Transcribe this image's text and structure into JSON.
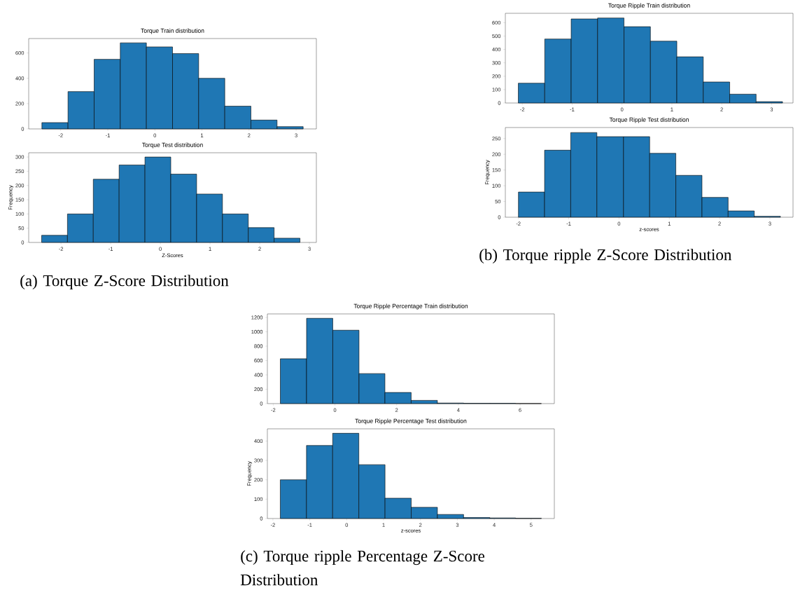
{
  "chart_data": [
    {
      "type": "histogram",
      "title": "Torque Train distribution",
      "color": "#1f77b4",
      "bins": [
        -2.4,
        -1.845,
        -1.29,
        -0.735,
        -0.18,
        0.375,
        0.93,
        1.485,
        2.04,
        2.595,
        3.15
      ],
      "values": [
        50,
        295,
        550,
        680,
        648,
        595,
        400,
        180,
        70,
        18
      ],
      "xlim": [
        -2.68,
        3.43
      ],
      "ylim": [
        0,
        714
      ],
      "xticks": [
        -2,
        -1,
        0,
        1,
        2,
        3
      ],
      "yticks": [
        0,
        200,
        400,
        600
      ]
    },
    {
      "type": "histogram",
      "title": "Torque Test distribution",
      "xlabel": "Z-Scores",
      "ylabel": "Frequency",
      "color": "#1f77b4",
      "bins": [
        -2.39,
        -1.87,
        -1.35,
        -0.83,
        -0.31,
        0.21,
        0.73,
        1.25,
        1.77,
        2.29,
        2.81
      ],
      "values": [
        25,
        100,
        222,
        272,
        300,
        240,
        170,
        100,
        52,
        15
      ],
      "xlim": [
        -2.65,
        3.14
      ],
      "ylim": [
        0,
        315
      ],
      "xticks": [
        -2,
        -1,
        0,
        1,
        2,
        3
      ],
      "yticks": [
        0,
        50,
        100,
        150,
        200,
        250,
        300
      ],
      "annotations": [
        "(a) Torque Z-Score Distribution"
      ]
    },
    {
      "type": "histogram",
      "title": "Torque Ripple Train distribution",
      "color": "#1f77b4",
      "bins": [
        -2.08,
        -1.55,
        -1.02,
        -0.49,
        0.04,
        0.57,
        1.1,
        1.63,
        2.16,
        2.69,
        3.22
      ],
      "values": [
        148,
        478,
        628,
        635,
        570,
        462,
        345,
        157,
        66,
        10
      ],
      "xlim": [
        -2.34,
        3.43
      ],
      "ylim": [
        0,
        670
      ],
      "xticks": [
        -2,
        -1,
        0,
        1,
        2,
        3
      ],
      "yticks": [
        0,
        100,
        200,
        300,
        400,
        500,
        600
      ]
    },
    {
      "type": "histogram",
      "title": "Torque Ripple Test distribution",
      "xlabel": "z-scores",
      "ylabel": "Frequency",
      "color": "#1f77b4",
      "bins": [
        -2.0,
        -1.48,
        -0.96,
        -0.44,
        0.09,
        0.61,
        1.13,
        1.65,
        2.17,
        2.69,
        3.21
      ],
      "values": [
        80,
        213,
        269,
        256,
        256,
        203,
        133,
        63,
        20,
        3
      ],
      "xlim": [
        -2.26,
        3.46
      ],
      "ylim": [
        0,
        285
      ],
      "xticks": [
        -2,
        -1,
        0,
        1,
        2,
        3
      ],
      "yticks": [
        0,
        50,
        100,
        150,
        200,
        250
      ],
      "annotations": [
        "(b) Torque ripple Z-Score Distribution"
      ]
    },
    {
      "type": "histogram",
      "title": "Torque Ripple Percentage Train distribution",
      "color": "#1f77b4",
      "bins": [
        -1.77,
        -0.92,
        -0.07,
        0.78,
        1.62,
        2.47,
        3.32,
        4.17,
        5.02,
        5.85,
        6.69
      ],
      "values": [
        625,
        1188,
        1022,
        418,
        155,
        45,
        8,
        4,
        4,
        1
      ],
      "xlim": [
        -2.19,
        7.11
      ],
      "ylim": [
        0,
        1249
      ],
      "xticks": [
        -2,
        0,
        2,
        4,
        6
      ],
      "yticks": [
        0,
        200,
        400,
        600,
        800,
        1000,
        1200
      ]
    },
    {
      "type": "histogram",
      "title": "Torque Ripple Percentage Test distribution",
      "xlabel": "z-scores",
      "ylabel": "Frequency",
      "color": "#1f77b4",
      "bins": [
        -1.8,
        -1.09,
        -0.38,
        0.33,
        1.04,
        1.75,
        2.46,
        3.17,
        3.88,
        4.58,
        5.28
      ],
      "values": [
        200,
        377,
        440,
        278,
        105,
        58,
        21,
        5,
        3,
        1
      ],
      "xlim": [
        -2.15,
        5.63
      ],
      "ylim": [
        0,
        463
      ],
      "xticks": [
        -2,
        -1,
        0,
        1,
        2,
        3,
        4,
        5
      ],
      "yticks": [
        0,
        100,
        200,
        300,
        400
      ],
      "annotations": [
        "(c) Torque ripple Percentage Z-Score Distribution"
      ]
    }
  ]
}
